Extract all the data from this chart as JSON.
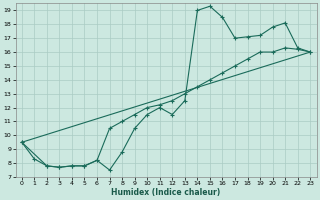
{
  "xlabel": "Humidex (Indice chaleur)",
  "background_color": "#cce8e0",
  "grid_color": "#aaccc4",
  "line_color": "#1a6b5a",
  "xlim": [
    -0.5,
    23.5
  ],
  "ylim": [
    7,
    19.5
  ],
  "xticks": [
    0,
    1,
    2,
    3,
    4,
    5,
    6,
    7,
    8,
    9,
    10,
    11,
    12,
    13,
    14,
    15,
    16,
    17,
    18,
    19,
    20,
    21,
    22,
    23
  ],
  "yticks": [
    7,
    8,
    9,
    10,
    11,
    12,
    13,
    14,
    15,
    16,
    17,
    18,
    19
  ],
  "line1_x": [
    0,
    1,
    2,
    3,
    4,
    5,
    6,
    7,
    8,
    9,
    10,
    11,
    12,
    13,
    14,
    15,
    16,
    17,
    18,
    19,
    20,
    21,
    22,
    23
  ],
  "line1_y": [
    9.5,
    8.3,
    7.8,
    7.7,
    7.8,
    7.8,
    8.2,
    7.5,
    8.8,
    10.5,
    11.5,
    12.0,
    11.5,
    12.5,
    19.0,
    19.3,
    18.5,
    17.0,
    17.1,
    17.2,
    17.8,
    18.1,
    16.3,
    16.0
  ],
  "line2_x": [
    0,
    2,
    3,
    4,
    5,
    6,
    7,
    8,
    9,
    10,
    11,
    12,
    13,
    14,
    15,
    16,
    17,
    18,
    19,
    20,
    21,
    22,
    23
  ],
  "line2_y": [
    9.5,
    7.8,
    7.7,
    7.8,
    7.8,
    8.2,
    10.5,
    11.0,
    11.5,
    12.0,
    12.2,
    12.5,
    13.0,
    13.5,
    14.0,
    14.5,
    15.0,
    15.5,
    16.0,
    16.0,
    16.3,
    16.2,
    16.0
  ],
  "line3_x": [
    0,
    23
  ],
  "line3_y": [
    9.5,
    16.0
  ]
}
